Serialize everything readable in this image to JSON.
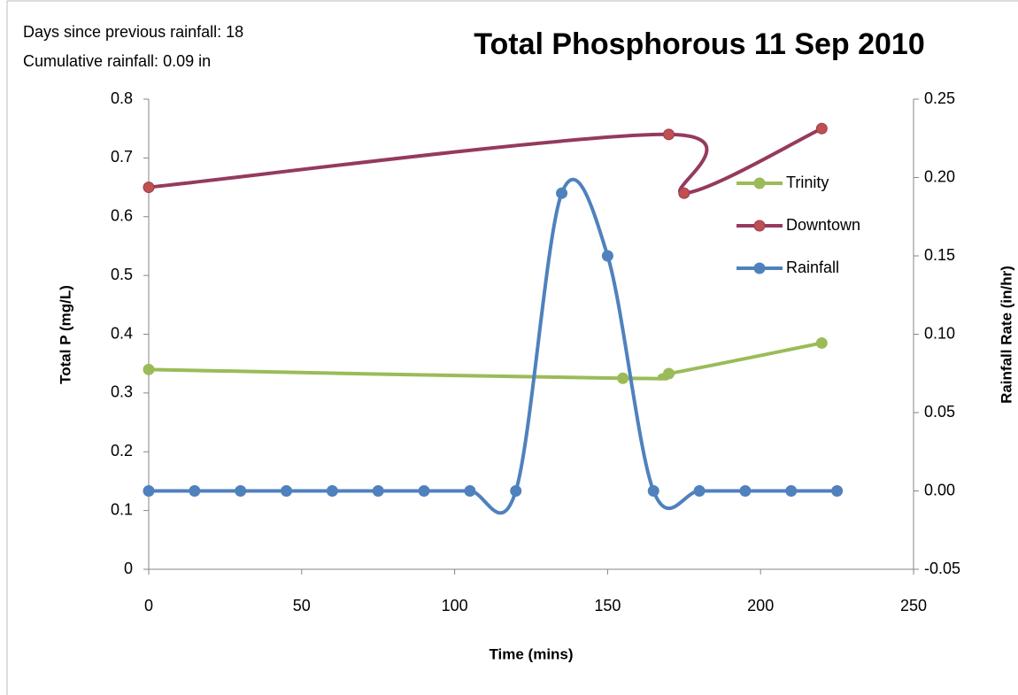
{
  "chart_data": {
    "type": "line",
    "title": "Total Phosphorous 11 Sep 2010",
    "annotations": [
      "Days since previous rainfall: 18",
      "Cumulative rainfall: 0.09 in"
    ],
    "x_label": "Time (mins)",
    "y_label": "Total P (mg/L)",
    "y2_label": "Rainfall Rate (in/hr)",
    "xlim": [
      0,
      250
    ],
    "xticks": [
      0,
      50,
      100,
      150,
      200,
      250
    ],
    "ylim": [
      0,
      0.8
    ],
    "yticks": [
      0,
      0.1,
      0.2,
      0.3,
      0.4,
      0.5,
      0.6,
      0.7,
      0.8
    ],
    "y2lim": [
      -0.05,
      0.25
    ],
    "y2ticks": [
      -0.05,
      {
        "value": 0,
        "label": "0.00"
      },
      0.05,
      {
        "value": 0.1,
        "label": "0.10"
      },
      0.15,
      {
        "value": 0.2,
        "label": "0.20"
      },
      0.25
    ],
    "legend": "right",
    "smooth": true,
    "series": [
      {
        "name": "Trinity",
        "color": "#9bbb59",
        "x": [
          0,
          155,
          170,
          220
        ],
        "values": [
          0.34,
          0.325,
          0.333,
          0.385
        ]
      },
      {
        "name": "Downtown",
        "color": "#953a5e",
        "marker_color": "#c0504d",
        "x": [
          0,
          170,
          175,
          220
        ],
        "values": [
          0.65,
          0.74,
          0.64,
          0.75
        ]
      },
      {
        "name": "Rainfall",
        "color": "#4f81bd",
        "axis": "y2",
        "x": [
          0,
          15,
          30,
          45,
          60,
          75,
          90,
          105,
          120,
          135,
          150,
          165,
          180,
          195,
          210,
          225
        ],
        "values": [
          0,
          0,
          0,
          0,
          0,
          0,
          0,
          0,
          0,
          0.19,
          0.15,
          0,
          0,
          0,
          0,
          0
        ]
      }
    ]
  }
}
